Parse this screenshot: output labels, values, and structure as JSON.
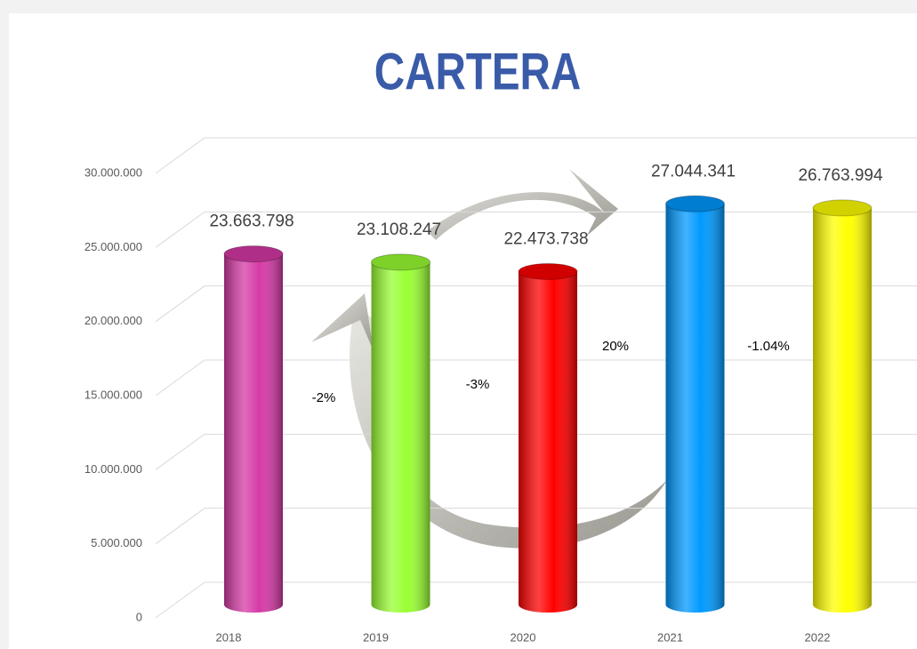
{
  "chart_data": {
    "type": "bar",
    "title": "CARTERA",
    "categories": [
      "2018",
      "2019",
      "2020",
      "2021",
      "2022"
    ],
    "values": [
      23663798,
      23108247,
      22473738,
      27044341,
      26763994
    ],
    "value_labels": [
      "23.663.798",
      "23.108.247",
      "22.473.738",
      "27.044.341",
      "26.763.994"
    ],
    "colors": [
      "#d63aa6",
      "#99ff33",
      "#ff0000",
      "#0099ff",
      "#ffff00"
    ],
    "annotations": [
      "-2%",
      "-3%",
      "20%",
      "-1.04%"
    ],
    "ylim": [
      0,
      30000000
    ],
    "yticks": [
      0,
      {
        "value": 5000000,
        "label": "5.000.000"
      },
      {
        "value": 10000000,
        "label": "10.000.000"
      },
      {
        "value": 15000000,
        "label": "15.000.000"
      },
      {
        "value": 20000000,
        "label": "20.000.000"
      },
      {
        "value": 25000000,
        "label": "25.000.000"
      },
      {
        "value": 30000000,
        "label": "30.000.000"
      }
    ],
    "grid": true
  }
}
